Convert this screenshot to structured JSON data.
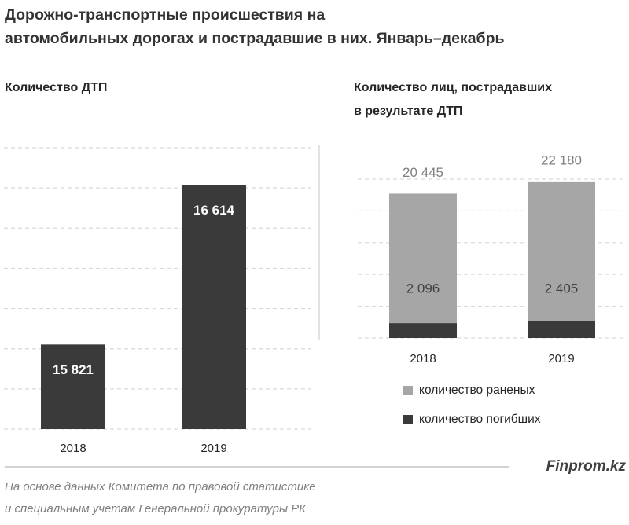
{
  "title": [
    "Дорожно-транспортные происшествия на",
    "автомобильных дорогах и пострадавшие в них. Январь–декабрь"
  ],
  "source": "Finprom.kz",
  "note": [
    "На основе данных Комитета по правовой статистике",
    "и специальным учетам Генеральной прокуратуры РК"
  ],
  "chart_data": [
    {
      "type": "bar",
      "title": [
        "Количество  ДТП"
      ],
      "categories": [
        "2018",
        "2019"
      ],
      "values": [
        15821,
        16614
      ],
      "value_labels": [
        "15 821",
        "16 614"
      ],
      "color": "#3a3a3a",
      "ylim": [
        15400,
        16800
      ],
      "yticks": [
        15400,
        15600,
        15800,
        16000,
        16200,
        16400,
        16600,
        16800
      ],
      "grid": true
    },
    {
      "type": "bar",
      "title": [
        "Количество  лиц, пострадавших",
        "в результате ДТП"
      ],
      "categories": [
        "2018",
        "2019"
      ],
      "series": [
        {
          "name": "количество раненых",
          "color": "#a6a6a6",
          "values": [
            20445,
            22180
          ],
          "value_labels": [
            "20 445",
            "22 180"
          ]
        },
        {
          "name": "количество погибших",
          "color": "#3a3a3a",
          "values": [
            2096,
            2405
          ],
          "value_labels": [
            "2 096",
            "2 405"
          ]
        }
      ],
      "overlap": true,
      "legend": "bottom",
      "ylim": [
        0,
        22500
      ],
      "yticks": [
        0,
        4500,
        9000,
        13500,
        18000,
        22500
      ],
      "grid": true
    }
  ]
}
